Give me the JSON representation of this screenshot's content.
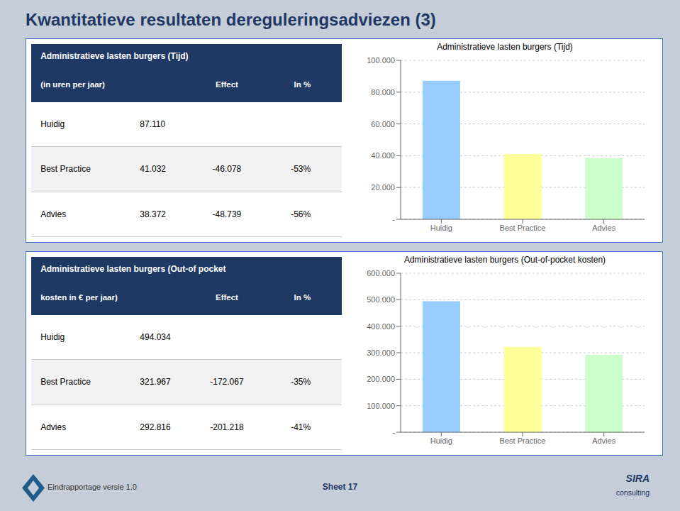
{
  "title": "Kwantitatieve resultaten dereguleringsadviezen (3)",
  "chart_data": [
    {
      "type": "bar",
      "title": "Administratieve lasten burgers (Tijd)",
      "categories": [
        "Huidig",
        "Best Practice",
        "Advies"
      ],
      "values": [
        87110,
        41032,
        38372
      ],
      "colors": [
        "#99CCFF",
        "#FFFF99",
        "#CCFFCC"
      ],
      "ylim": [
        0,
        100000
      ],
      "yticks": [
        {
          "value": 0,
          "label": "-"
        },
        {
          "value": 20000,
          "label": "20.000"
        },
        {
          "value": 40000,
          "label": "40.000"
        },
        {
          "value": 60000,
          "label": "60.000"
        },
        {
          "value": 80000,
          "label": "80.000"
        },
        {
          "value": 100000,
          "label": "100.000"
        }
      ],
      "grid": true,
      "table": {
        "header": [
          "Administratieve lasten burgers (Tijd)",
          "(in uren per jaar)"
        ],
        "columns": [
          "Effect",
          "In %"
        ],
        "rows": [
          [
            "Huidig",
            "87.110",
            null,
            null
          ],
          [
            "Best Practice",
            "41.032",
            "-46.078",
            "-53%"
          ],
          [
            "Advies",
            "38.372",
            "-48.739",
            "-56%"
          ]
        ]
      }
    },
    {
      "type": "bar",
      "title": "Administratieve lasten burgers (Out-of-pocket kosten)",
      "categories": [
        "Huidig",
        "Best Practice",
        "Advies"
      ],
      "values": [
        494034,
        321967,
        292816
      ],
      "colors": [
        "#99CCFF",
        "#FFFF99",
        "#CCFFCC"
      ],
      "ylim": [
        0,
        600000
      ],
      "yticks": [
        {
          "value": 0,
          "label": "-"
        },
        {
          "value": 100000,
          "label": "100.000"
        },
        {
          "value": 200000,
          "label": "200.000"
        },
        {
          "value": 300000,
          "label": "300.000"
        },
        {
          "value": 400000,
          "label": "400.000"
        },
        {
          "value": 500000,
          "label": "500.000"
        },
        {
          "value": 600000,
          "label": "600.000"
        }
      ],
      "grid": true,
      "table": {
        "header": [
          "Administratieve lasten burgers (Out-of pocket",
          "kosten in € per jaar)"
        ],
        "columns": [
          "Effect",
          "In %"
        ],
        "rows": [
          [
            "Huidig",
            "494.034",
            null,
            null
          ],
          [
            "Best Practice",
            "321.967",
            "-172.067",
            "-35%"
          ],
          [
            "Advies",
            "292.816",
            "-201.218",
            "-41%"
          ]
        ]
      }
    }
  ],
  "annotations": [
    "Eindrapportage versie 1.0",
    "Sheet 17",
    "SIRA",
    "consulting"
  ]
}
